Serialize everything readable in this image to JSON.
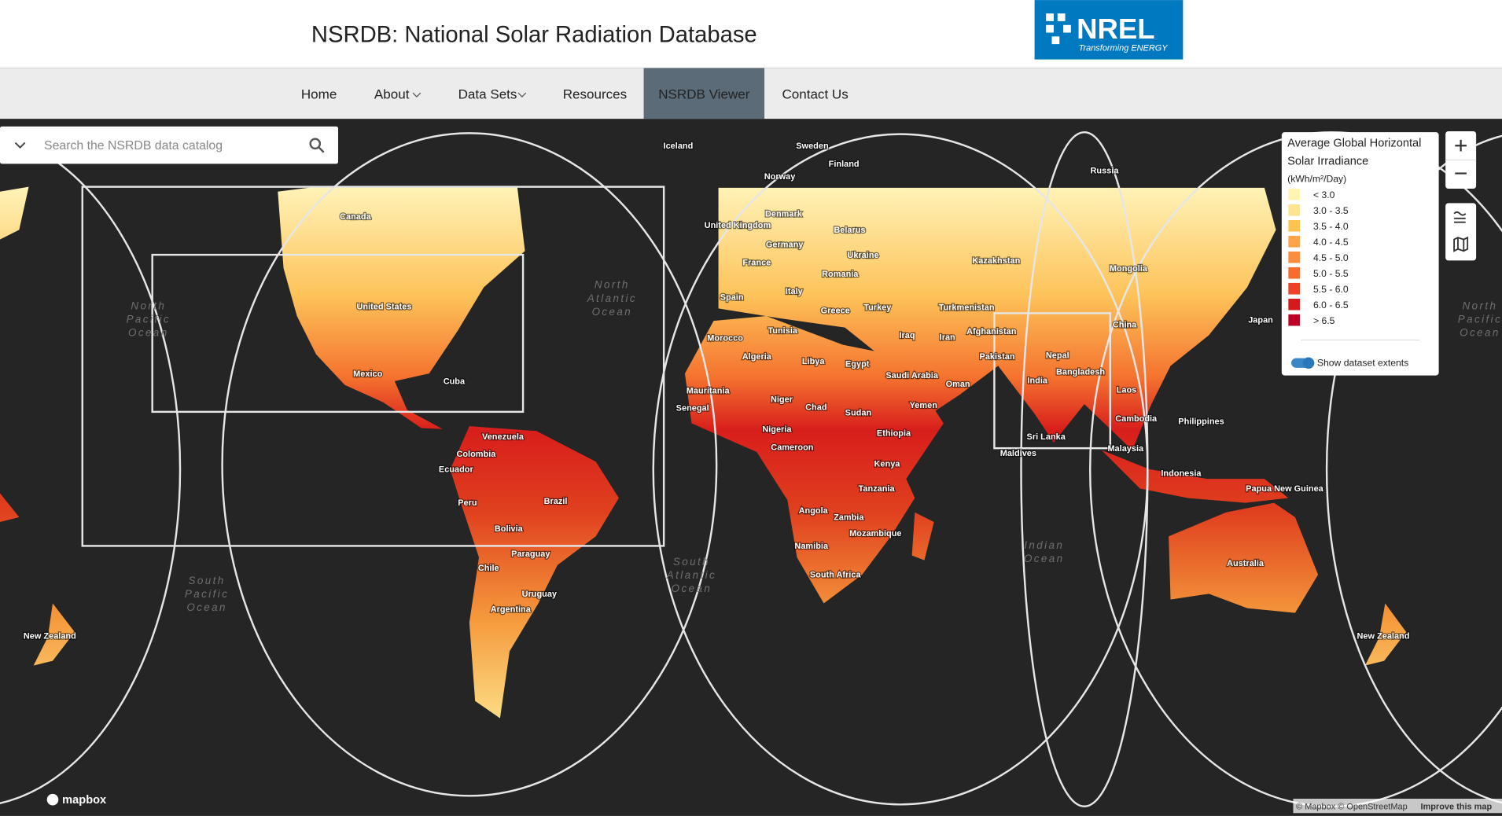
{
  "header": {
    "title": "NSRDB: National Solar Radiation Database",
    "logo": "NREL",
    "logo_tagline": "Transforming ENERGY"
  },
  "nav": [
    "Home",
    "About",
    "Data Sets",
    "Resources",
    "NSRDB Viewer",
    "Contact Us"
  ],
  "search": {
    "placeholder": "Search the NSRDB data catalog"
  },
  "legend": {
    "title": [
      "Average Global Horizontal",
      "Solar Irradiance"
    ],
    "unit": "(kWh/m²/Day)",
    "items": [
      {
        "label": "< 3.0",
        "color": "#fff5b0"
      },
      {
        "label": "3.0 - 3.5",
        "color": "#fee391"
      },
      {
        "label": "3.5 - 4.0",
        "color": "#fec44f"
      },
      {
        "label": "4.0 - 4.5",
        "color": "#fda349"
      },
      {
        "label": "4.5 - 5.0",
        "color": "#fc8d3c"
      },
      {
        "label": "5.0 - 5.5",
        "color": "#f86c30"
      },
      {
        "label": "5.5 - 6.0",
        "color": "#ee4127"
      },
      {
        "label": "6.0 - 6.5",
        "color": "#d7191c"
      },
      {
        "label": "> 6.5",
        "color": "#bd0026"
      }
    ],
    "toggle": "Show dataset extents"
  },
  "map_labels": [
    "Iceland",
    "Sweden",
    "Finland",
    "Norway",
    "Russia",
    "Canada",
    "United States",
    "Mexico",
    "Cuba",
    "Venezuela",
    "Colombia",
    "Ecuador",
    "Peru",
    "Brazil",
    "Bolivia",
    "Paraguay",
    "Chile",
    "Uruguay",
    "Argentina",
    "United Kingdom",
    "Denmark",
    "Germany",
    "France",
    "Spain",
    "Italy",
    "Belarus",
    "Ukraine",
    "Romania",
    "Greece",
    "Turkey",
    "Morocco",
    "Tunisia",
    "Algeria",
    "Libya",
    "Egypt",
    "Mauritania",
    "Senegal",
    "Niger",
    "Chad",
    "Sudan",
    "Nigeria",
    "Ethiopia",
    "Cameroon",
    "Kenya",
    "Tanzania",
    "Angola",
    "Zambia",
    "Mozambique",
    "Namibia",
    "South Africa",
    "Kazakhstan",
    "Mongolia",
    "China",
    "Turkmenistan",
    "Iraq",
    "Iran",
    "Afghanistan",
    "Pakistan",
    "Saudi Arabia",
    "Oman",
    "Yemen",
    "India",
    "Nepal",
    "Bangladesh",
    "Sri Lanka",
    "Maldives",
    "Laos",
    "Cambodia",
    "Malaysia",
    "Philippines",
    "Indonesia",
    "Papua New Guinea",
    "Japan",
    "Australia",
    "New Zealand",
    "New Zealand"
  ],
  "ocean_labels": [
    [
      "North",
      "Pacific",
      "Ocean"
    ],
    [
      "North",
      "Atlantic",
      "Ocean"
    ],
    [
      "South",
      "Atlantic",
      "Ocean"
    ],
    [
      "South",
      "Pacific",
      "Ocean"
    ],
    [
      "Indian",
      "Ocean"
    ],
    [
      "North",
      "Pacific",
      "Ocean"
    ]
  ],
  "footer": {
    "logo": "mapbox",
    "attribution": "© Mapbox © OpenStreetMap",
    "improve": "Improve this map"
  }
}
